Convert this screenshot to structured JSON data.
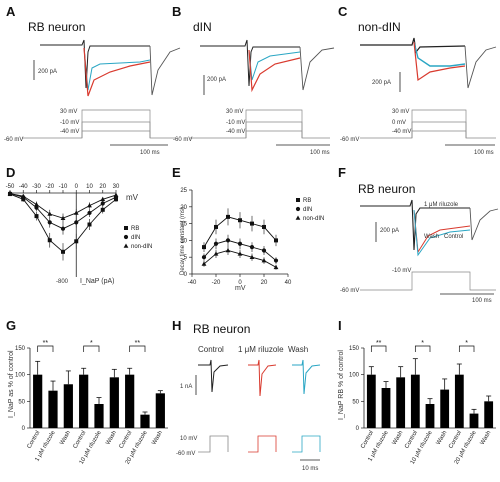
{
  "panelA": {
    "letter": "A",
    "title": "RB neuron",
    "scale_current": "200 pA",
    "scale_time": "100 ms",
    "voltages": [
      "30 mV",
      "-10 mV",
      "-40 mV"
    ],
    "holding": "-60 mV"
  },
  "panelB": {
    "letter": "B",
    "title": "dIN",
    "scale_current": "200 pA",
    "scale_time": "100 ms",
    "voltages": [
      "30 mV",
      "-10 mV",
      "-40 mV"
    ],
    "holding": "-60 mV"
  },
  "panelC": {
    "letter": "C",
    "title": "non-dIN",
    "scale_current": "200 pA",
    "scale_time": "100 ms",
    "voltages": [
      "30 mV",
      "0 mV",
      "-40 mV"
    ],
    "holding": "-60 mV"
  },
  "panelF": {
    "letter": "F",
    "title": "RB neuron",
    "drug": "1 μM riluzole",
    "wash": "Wash",
    "control": "Control",
    "scale_current": "200 pA",
    "step": "-10 mV",
    "holding": "-60 mV",
    "scale_time": "100 ms"
  },
  "panelH": {
    "letter": "H",
    "title": "RB neuron",
    "columns": [
      "Control",
      "1 μM riluzole",
      "Wash"
    ],
    "scale_current": "1 nA",
    "step": "10 mV",
    "holding": "-60 mV",
    "scale_time": "10 ms"
  },
  "colors": {
    "control": "#222222",
    "drug": "#d93a2e",
    "wash": "#2aa6c4",
    "bar": "#000000"
  },
  "chart_data": [
    {
      "id": "D",
      "letter": "D",
      "type": "line",
      "xlabel": "mV",
      "ylabel": "I_NaP (pA)",
      "y_label_tick": "-800",
      "xlim": [
        -50,
        30
      ],
      "ylim": [
        -800,
        0
      ],
      "xticks": [
        -50,
        -40,
        -30,
        -20,
        -10,
        0,
        10,
        20,
        30
      ],
      "x": [
        -50,
        -40,
        -30,
        -20,
        -10,
        0,
        10,
        20,
        30
      ],
      "series": [
        {
          "name": "RB",
          "values": [
            -10,
            -60,
            -220,
            -450,
            -560,
            -460,
            -300,
            -160,
            -60
          ]
        },
        {
          "name": "dIN",
          "values": [
            -5,
            -40,
            -140,
            -280,
            -340,
            -280,
            -190,
            -100,
            -40
          ]
        },
        {
          "name": "non-dIN",
          "values": [
            -5,
            -30,
            -110,
            -200,
            -240,
            -190,
            -120,
            -60,
            -20
          ]
        }
      ]
    },
    {
      "id": "E",
      "letter": "E",
      "type": "line",
      "xlabel": "mV",
      "ylabel": "Decay time constant (ms)",
      "xlim": [
        -40,
        40
      ],
      "ylim": [
        0,
        25
      ],
      "xticks": [
        -40,
        -20,
        0,
        20,
        40
      ],
      "yticks": [
        0,
        5,
        10,
        15,
        20,
        25
      ],
      "x": [
        -30,
        -20,
        -10,
        0,
        10,
        20,
        30
      ],
      "series": [
        {
          "name": "RB",
          "values": [
            8,
            14,
            17,
            16,
            15,
            14,
            10
          ]
        },
        {
          "name": "dIN",
          "values": [
            5,
            9,
            10,
            9,
            8,
            7,
            4
          ]
        },
        {
          "name": "non-dIN",
          "values": [
            3,
            6,
            7,
            6,
            5,
            4,
            2
          ]
        }
      ]
    },
    {
      "id": "G",
      "letter": "G",
      "type": "bar",
      "ylabel": "I_NaP as % of control",
      "ylim": [
        0,
        150
      ],
      "yticks": [
        0,
        50,
        100,
        150
      ],
      "categories": [
        "Control",
        "1 μM riluzole",
        "Wash",
        "Control",
        "10 μM riluzole",
        "Wash",
        "Control",
        "20 μM riluzole",
        "Wash"
      ],
      "values": [
        100,
        70,
        82,
        100,
        45,
        95,
        100,
        25,
        65
      ],
      "errors": [
        25,
        18,
        25,
        12,
        12,
        15,
        12,
        5,
        5
      ],
      "significance": [
        {
          "from": 0,
          "to": 1,
          "label": "**"
        },
        {
          "from": 3,
          "to": 4,
          "label": "*"
        },
        {
          "from": 6,
          "to": 7,
          "label": "**"
        }
      ]
    },
    {
      "id": "I",
      "letter": "I",
      "type": "bar",
      "ylabel": "I_NaP RB % of control",
      "ylim": [
        0,
        150
      ],
      "yticks": [
        0,
        50,
        100,
        150
      ],
      "categories": [
        "Control",
        "1 μM riluzole",
        "Wash",
        "Control",
        "10 μM riluzole",
        "Wash",
        "Control",
        "20 μM riluzole",
        "Wash"
      ],
      "values": [
        100,
        75,
        95,
        100,
        45,
        72,
        100,
        27,
        50
      ],
      "errors": [
        15,
        12,
        20,
        30,
        10,
        20,
        20,
        8,
        10
      ],
      "significance": [
        {
          "from": 0,
          "to": 1,
          "label": "**"
        },
        {
          "from": 3,
          "to": 4,
          "label": "*"
        },
        {
          "from": 6,
          "to": 7,
          "label": "*"
        }
      ]
    }
  ]
}
